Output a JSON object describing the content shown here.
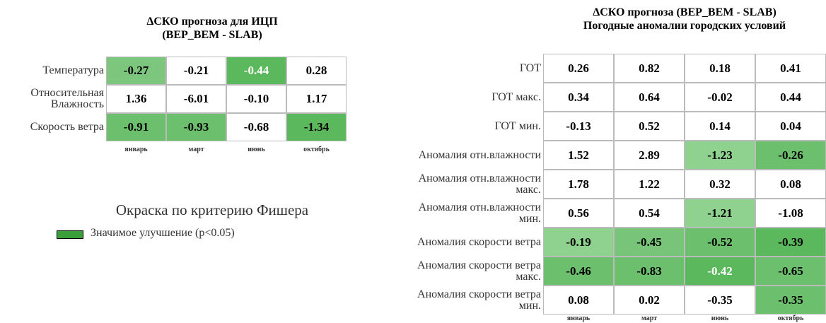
{
  "left": {
    "title": [
      "ΔСКО прогноза для ИЦП",
      "(BEP_BEM - SLAB)"
    ],
    "columns": [
      "январь",
      "март",
      "июнь",
      "октябрь"
    ],
    "rows": [
      {
        "label": [
          "Температура"
        ],
        "cells": [
          {
            "text": "-0.27",
            "fill": "#7dc67d"
          },
          {
            "text": "-0.21",
            "fill": "#ffffff"
          },
          {
            "text": "-0.44",
            "fill": "#5cb85c",
            "ink": "#ffffff"
          },
          {
            "text": "0.28",
            "fill": "#ffffff"
          }
        ]
      },
      {
        "label": [
          "Относительная",
          "Влажность"
        ],
        "cells": [
          {
            "text": "1.36",
            "fill": "#ffffff"
          },
          {
            "text": "-6.01",
            "fill": "#ffffff"
          },
          {
            "text": "-0.10",
            "fill": "#ffffff"
          },
          {
            "text": "1.17",
            "fill": "#ffffff"
          }
        ]
      },
      {
        "label": [
          "Скорость ветра"
        ],
        "cells": [
          {
            "text": "-0.91",
            "fill": "#6cbf6c"
          },
          {
            "text": "-0.93",
            "fill": "#6cbf6c"
          },
          {
            "text": "-0.68",
            "fill": "#ffffff"
          },
          {
            "text": "-1.34",
            "fill": "#5cb85c"
          }
        ]
      }
    ]
  },
  "legend": {
    "title": "Окраска по критерию Фишера",
    "items": [
      {
        "label": "Значимое улучшение (p<0.05)",
        "color": "#3a9f3a"
      }
    ]
  },
  "right": {
    "title": [
      "ΔСКО прогноза (BEP_BEM - SLAB)",
      "Погодные аномалии городских условий"
    ],
    "columns": [
      "январь",
      "март",
      "июнь",
      "октябрь"
    ],
    "rows": [
      {
        "label": [
          "ГОТ"
        ],
        "cells": [
          {
            "text": "0.26",
            "fill": "#ffffff"
          },
          {
            "text": "0.82",
            "fill": "#ffffff"
          },
          {
            "text": "0.18",
            "fill": "#ffffff"
          },
          {
            "text": "0.41",
            "fill": "#ffffff"
          }
        ]
      },
      {
        "label": [
          "ГОТ макс."
        ],
        "cells": [
          {
            "text": "0.34",
            "fill": "#ffffff"
          },
          {
            "text": "0.64",
            "fill": "#ffffff"
          },
          {
            "text": "-0.02",
            "fill": "#ffffff"
          },
          {
            "text": "0.44",
            "fill": "#ffffff"
          }
        ]
      },
      {
        "label": [
          "ГОТ мин."
        ],
        "cells": [
          {
            "text": "-0.13",
            "fill": "#ffffff"
          },
          {
            "text": "0.52",
            "fill": "#ffffff"
          },
          {
            "text": "0.14",
            "fill": "#ffffff"
          },
          {
            "text": "0.04",
            "fill": "#ffffff"
          }
        ]
      },
      {
        "label": [
          "Аномалия отн.влажности"
        ],
        "cells": [
          {
            "text": "1.52",
            "fill": "#ffffff"
          },
          {
            "text": "2.89",
            "fill": "#ffffff"
          },
          {
            "text": "-1.23",
            "fill": "#8fd18f"
          },
          {
            "text": "-0.26",
            "fill": "#6cbf6c"
          }
        ]
      },
      {
        "label": [
          "Аномалия отн.влажности",
          "макс."
        ],
        "cells": [
          {
            "text": "1.78",
            "fill": "#ffffff"
          },
          {
            "text": "1.22",
            "fill": "#ffffff"
          },
          {
            "text": "0.32",
            "fill": "#ffffff"
          },
          {
            "text": "0.08",
            "fill": "#ffffff"
          }
        ]
      },
      {
        "label": [
          "Аномалия отн.влажности",
          "мин."
        ],
        "cells": [
          {
            "text": "0.56",
            "fill": "#ffffff"
          },
          {
            "text": "0.54",
            "fill": "#ffffff"
          },
          {
            "text": "-1.21",
            "fill": "#8fd18f"
          },
          {
            "text": "-1.08",
            "fill": "#ffffff"
          }
        ]
      },
      {
        "label": [
          "Аномалия скорости ветра"
        ],
        "cells": [
          {
            "text": "-0.19",
            "fill": "#8fd18f"
          },
          {
            "text": "-0.45",
            "fill": "#78c478"
          },
          {
            "text": "-0.52",
            "fill": "#6cbf6c"
          },
          {
            "text": "-0.39",
            "fill": "#5cb85c"
          }
        ]
      },
      {
        "label": [
          "Аномалия скорости ветра",
          "макс."
        ],
        "cells": [
          {
            "text": "-0.46",
            "fill": "#6cbf6c"
          },
          {
            "text": "-0.83",
            "fill": "#6cbf6c"
          },
          {
            "text": "-0.42",
            "fill": "#5cb85c",
            "ink": "#ffffff"
          },
          {
            "text": "-0.65",
            "fill": "#6cbf6c"
          }
        ]
      },
      {
        "label": [
          "Аномалия скорости ветра",
          "мин."
        ],
        "cells": [
          {
            "text": "0.08",
            "fill": "#ffffff"
          },
          {
            "text": "0.02",
            "fill": "#ffffff"
          },
          {
            "text": "-0.35",
            "fill": "#ffffff"
          },
          {
            "text": "-0.35",
            "fill": "#6cbf6c"
          }
        ]
      }
    ]
  }
}
